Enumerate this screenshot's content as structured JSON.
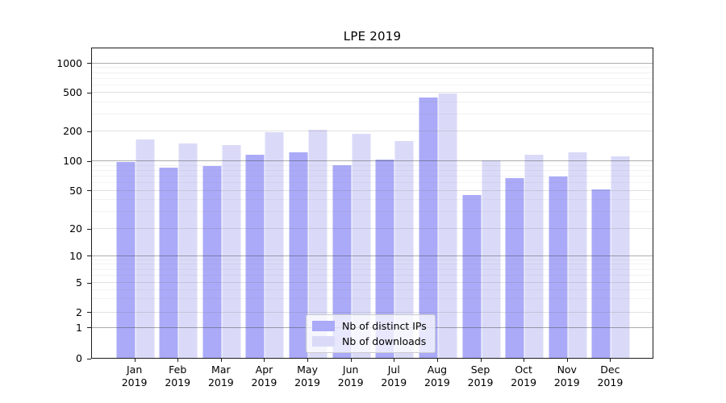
{
  "title": "LPE 2019",
  "chart_data": {
    "type": "bar",
    "title": "LPE 2019",
    "categories": [
      "Jan 2019",
      "Feb 2019",
      "Mar 2019",
      "Apr 2019",
      "May 2019",
      "Jun 2019",
      "Jul 2019",
      "Aug 2019",
      "Sep 2019",
      "Oct 2019",
      "Nov 2019",
      "Dec 2019"
    ],
    "series": [
      {
        "name": "Nb of distinct IPs",
        "color": "#aaaaf8",
        "values": [
          96,
          85,
          88,
          114,
          120,
          89,
          102,
          435,
          44,
          66,
          68,
          51
        ]
      },
      {
        "name": "Nb of downloads",
        "color": "#dadaf8",
        "values": [
          162,
          149,
          142,
          192,
          204,
          187,
          157,
          482,
          100,
          115,
          121,
          110
        ]
      }
    ],
    "xlabel": "",
    "ylabel": "",
    "yscale": "symlog",
    "yticks": [
      0,
      1,
      2,
      5,
      10,
      20,
      50,
      100,
      200,
      500,
      1000
    ],
    "minor_yticks": [
      3,
      4,
      6,
      7,
      8,
      9,
      30,
      40,
      60,
      70,
      80,
      90,
      300,
      400,
      600,
      700,
      800,
      900
    ],
    "ylim": [
      0,
      1400
    ],
    "grid": "on",
    "legend_position": "lower center"
  }
}
